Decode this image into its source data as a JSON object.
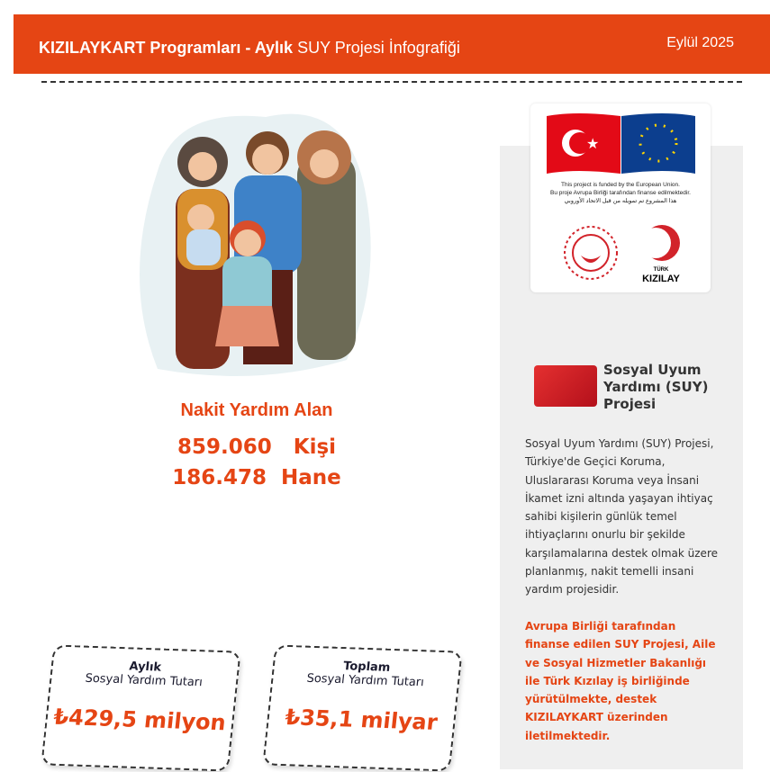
{
  "header": {
    "title_bold": "KIZILAYKART Programları - Aylık",
    "title_rest": "SUY Projesi İnfografiği",
    "date": "Eylül 2025"
  },
  "logos": {
    "funded_en": "This project is funded by the European Union.",
    "funded_tr": "Bu proje Avrupa Birliği tarafından finanse edilmektedir.",
    "funded_ar": "هذا المشروع تم تمويله من قبل الاتحاد الأوروبي",
    "kizilay_small": "TÜRK",
    "kizilay_big": "KIZILAY"
  },
  "side": {
    "title": "Sosyal Uyum Yardımı (SUY) Projesi",
    "description": "Sosyal Uyum Yardımı (SUY) Projesi, Türkiye'de Geçici Koruma, Uluslararası Koruma veya İnsani İkamet izni altında yaşayan ihtiyaç sahibi kişilerin günlük temel ihtiyaçlarını onurlu bir şekilde karşılamalarına destek olmak üzere planlanmış, nakit temelli insani yardım projesidir.",
    "highlight": "Avrupa Birliği tarafından finanse edilen SUY Projesi, Aile ve Sosyal Hizmetler Bakanlığı ile Türk Kızılay iş birliğinde yürütülmekte, destek KIZILAYKART üzerinden iletilmektedir."
  },
  "stats": {
    "title": "Nakit Yardım Alan",
    "persons": "859.060   Kişi",
    "households": "186.478  Hane"
  },
  "cards": [
    {
      "label_bold": "Aylık",
      "label": "Sosyal Yardım Tutarı",
      "value": "₺429,5 milyon"
    },
    {
      "label_bold": "Toplam",
      "label": "Sosyal Yardım Tutarı",
      "value": "₺35,1 milyar"
    }
  ],
  "colors": {
    "brand": "#e54514",
    "panel": "#efefef"
  }
}
